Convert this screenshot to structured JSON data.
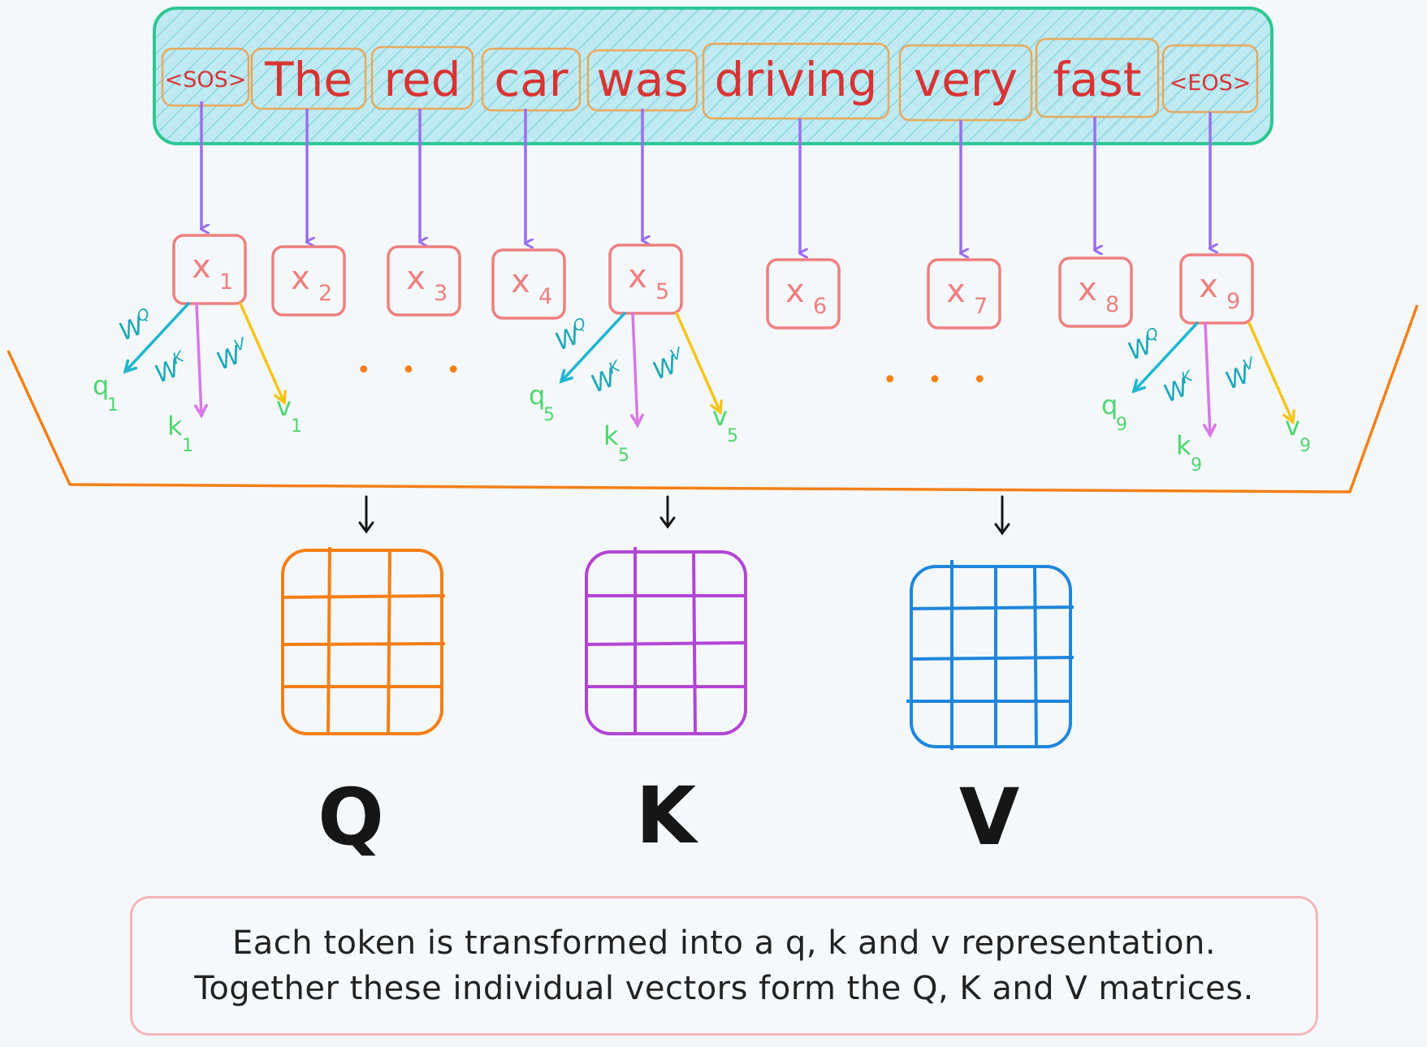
{
  "tokens": [
    {
      "text": "<SOS>",
      "small": true
    },
    {
      "text": "The",
      "small": false
    },
    {
      "text": "red",
      "small": false
    },
    {
      "text": "car",
      "small": false
    },
    {
      "text": "was",
      "small": false
    },
    {
      "text": "driving",
      "small": false
    },
    {
      "text": "very",
      "small": false
    },
    {
      "text": "fast",
      "small": false
    },
    {
      "text": "<EOS>",
      "small": true
    }
  ],
  "embeddings": [
    {
      "base": "x",
      "sub": "1"
    },
    {
      "base": "x",
      "sub": "2"
    },
    {
      "base": "x",
      "sub": "3"
    },
    {
      "base": "x",
      "sub": "4"
    },
    {
      "base": "x",
      "sub": "5"
    },
    {
      "base": "x",
      "sub": "6"
    },
    {
      "base": "x",
      "sub": "7"
    },
    {
      "base": "x",
      "sub": "8"
    },
    {
      "base": "x",
      "sub": "9"
    }
  ],
  "weights": {
    "base": "W",
    "q": "Q",
    "k": "K",
    "v": "V"
  },
  "projections": [
    {
      "token": "1",
      "q": "q",
      "k": "k",
      "v": "v"
    },
    {
      "token": "5",
      "q": "q",
      "k": "k",
      "v": "v"
    },
    {
      "token": "9",
      "q": "q",
      "k": "k",
      "v": "v"
    }
  ],
  "ellipsis": "• • •",
  "matrices": [
    {
      "label": "Q",
      "color": "#f47f16"
    },
    {
      "label": "K",
      "color": "#b245d6"
    },
    {
      "label": "V",
      "color": "#1f86dd"
    }
  ],
  "colors": {
    "sentence_border": "#2fc792",
    "token_border": "#e8a85a",
    "token_text": "#d83434",
    "arrow_down": "#9a6ef0",
    "x_box": "#ef7f7f",
    "wq_arrow": "#1fb6cf",
    "wk_arrow": "#d977e8",
    "wv_arrow": "#f5c518",
    "qkv_text": "#4ed66e",
    "tray": "#f47f16"
  },
  "caption": {
    "line1": "Each token is transformed into a q, k and v representation.",
    "line2": "Together these individual vectors form the Q, K and V matrices."
  }
}
